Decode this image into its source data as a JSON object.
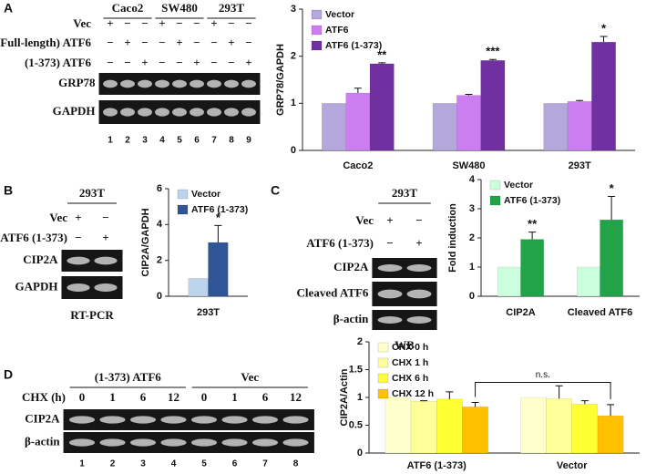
{
  "panels": [
    "A",
    "B",
    "C",
    "D"
  ],
  "gels": [
    {
      "headers": [
        "Caco2",
        "SW480",
        "293T"
      ],
      "rows": [
        {
          "label": "Vec",
          "cells": [
            "+",
            "−",
            "−",
            "+",
            "−",
            "−",
            "+",
            "−",
            "−"
          ]
        },
        {
          "label": "(Full-length) ATF6",
          "cells": [
            "−",
            "+",
            "−",
            "−",
            "+",
            "−",
            "−",
            "+",
            "−"
          ]
        },
        {
          "label": "(1-373) ATF6",
          "cells": [
            "−",
            "−",
            "+",
            "−",
            "−",
            "+",
            "−",
            "−",
            "+"
          ]
        }
      ],
      "bands": [
        "GRP78",
        "GAPDH"
      ],
      "lanes": [
        "1",
        "2",
        "3",
        "4",
        "5",
        "6",
        "7",
        "8",
        "9"
      ]
    },
    {
      "headers": [
        "293T"
      ],
      "rows": [
        {
          "label": "Vec",
          "cells": [
            "+",
            "−"
          ]
        },
        {
          "label": "ATF6 (1-373)",
          "cells": [
            "−",
            "+"
          ]
        }
      ],
      "bands": [
        "CIP2A",
        "GAPDH"
      ],
      "caption": "RT-PCR"
    },
    {
      "headers": [
        "293T"
      ],
      "rows": [
        {
          "label": "Vec",
          "cells": [
            "+",
            "−"
          ]
        },
        {
          "label": "ATF6 (1-373)",
          "cells": [
            "−",
            "+"
          ]
        }
      ],
      "bands": [
        "CIP2A",
        "Cleaved ATF6",
        "β-actin"
      ],
      "caption": "WB"
    },
    {
      "headers": [
        "(1-373) ATF6",
        "Vec"
      ],
      "rows": [
        {
          "label": "CHX (h)",
          "cells": [
            "0",
            "1",
            "6",
            "12",
            "0",
            "1",
            "6",
            "12"
          ]
        }
      ],
      "bands": [
        "CIP2A",
        "β-actin"
      ],
      "lanes": [
        "1",
        "2",
        "3",
        "4",
        "5",
        "6",
        "7",
        "8"
      ]
    }
  ],
  "chart_data": [
    {
      "type": "bar",
      "y_label": "GRP78/GAPDH",
      "categories": [
        "Caco2",
        "SW480",
        "293T"
      ],
      "series": [
        {
          "name": "Vector",
          "color": "#b4a7dc",
          "values": [
            1,
            1,
            1
          ]
        },
        {
          "name": "ATF6",
          "color": "#cc7ef0",
          "values": [
            1.22,
            1.17,
            1.04
          ],
          "errors": [
            0.1,
            0.02,
            0.02
          ]
        },
        {
          "name": "ATF6 (1-373)",
          "color": "#7030a0",
          "values": [
            1.84,
            1.91,
            2.3
          ],
          "errors": [
            0.02,
            0.02,
            0.12
          ]
        }
      ],
      "annotations": [
        "**",
        "***",
        "*"
      ],
      "ylim": [
        0,
        3
      ],
      "yticks": [
        0,
        1,
        2,
        3
      ],
      "legend": "upper left"
    },
    {
      "type": "bar",
      "y_label": "CIP2A/GAPDH",
      "categories": [
        "293T"
      ],
      "series": [
        {
          "name": "Vector",
          "color": "#bcd3ee",
          "values": [
            1
          ]
        },
        {
          "name": "ATF6 (1-373)",
          "color": "#2f5597",
          "values": [
            3.0
          ],
          "errors": [
            0.95
          ]
        }
      ],
      "annotations": [
        "*"
      ],
      "ylim": [
        0,
        6
      ],
      "yticks": [
        0,
        2,
        4,
        6
      ],
      "legend": "upper left"
    },
    {
      "type": "bar",
      "y_label": "Fold induction",
      "categories": [
        "CIP2A",
        "Cleaved ATF6"
      ],
      "series": [
        {
          "name": "Vector",
          "color": "#ccffdd",
          "values": [
            1,
            1
          ]
        },
        {
          "name": "ATF6 (1-373)",
          "color": "#22a34a",
          "values": [
            1.95,
            2.62
          ],
          "errors": [
            0.25,
            0.8
          ]
        }
      ],
      "annotations": [
        "**",
        "*"
      ],
      "ylim": [
        0,
        4
      ],
      "yticks": [
        0,
        1,
        2,
        3,
        4
      ],
      "legend": "upper left"
    },
    {
      "type": "bar",
      "y_label": "CIP2A/Actin",
      "categories": [
        "ATF6 (1-373)",
        "Vector"
      ],
      "series": [
        {
          "name": "CHX 0 h",
          "color": "#ffffcc",
          "values": [
            1,
            1
          ]
        },
        {
          "name": "CHX 1 h",
          "color": "#ffff99",
          "values": [
            0.93,
            0.98
          ],
          "errors": [
            0.01,
            0.23
          ]
        },
        {
          "name": "CHX 6 h",
          "color": "#ffff33",
          "values": [
            0.97,
            0.88
          ],
          "errors": [
            0.13,
            0.06
          ]
        },
        {
          "name": "CHX 12 h",
          "color": "#ffc000",
          "values": [
            0.83,
            0.67
          ],
          "errors": [
            0.08,
            0.2
          ]
        }
      ],
      "bracket_label": "n.s.",
      "ylim": [
        0,
        2
      ],
      "yticks": [
        0,
        0.5,
        1,
        1.5,
        2
      ],
      "legend": "upper left"
    }
  ]
}
